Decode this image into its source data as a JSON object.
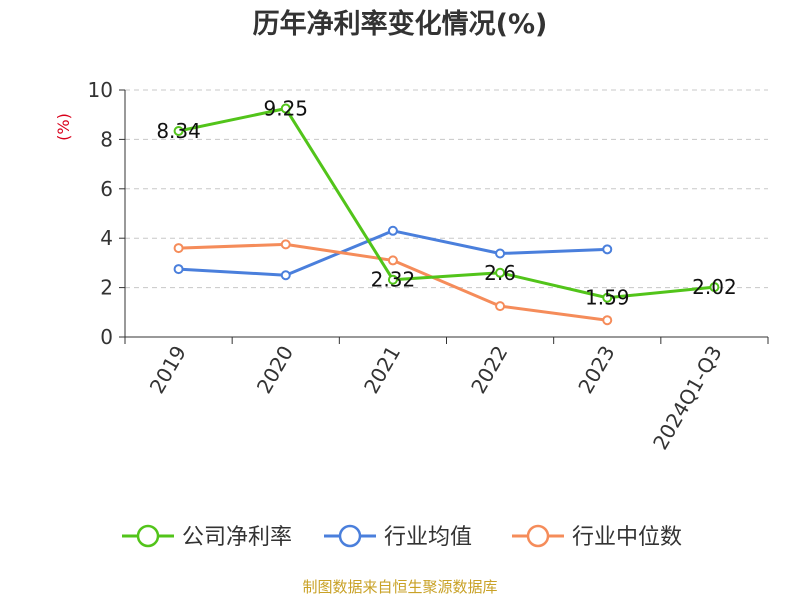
{
  "chart_data": {
    "type": "line",
    "title": "历年净利率变化情况(%)",
    "ylabel": "(%)",
    "ylim": [
      0,
      10
    ],
    "yticks": [
      0,
      2,
      4,
      6,
      8,
      10
    ],
    "categories": [
      "2019",
      "2020",
      "2021",
      "2022",
      "2023",
      "2024Q1-Q3"
    ],
    "grid": true,
    "legend_position": "bottom",
    "series": [
      {
        "name": "公司净利率",
        "color": "#52c41a",
        "values": [
          8.34,
          9.25,
          2.32,
          2.6,
          1.59,
          2.02
        ],
        "labels": [
          "8.34",
          "9.25",
          "2.32",
          "2.6",
          "1.59",
          "2.02"
        ]
      },
      {
        "name": "行业均值",
        "color": "#4a7fdc",
        "values": [
          2.75,
          2.5,
          4.3,
          3.38,
          3.55,
          null
        ]
      },
      {
        "name": "行业中位数",
        "color": "#f58c5a",
        "values": [
          3.6,
          3.75,
          3.1,
          1.25,
          0.68,
          null
        ]
      }
    ]
  },
  "source": "制图数据来自恒生聚源数据库"
}
